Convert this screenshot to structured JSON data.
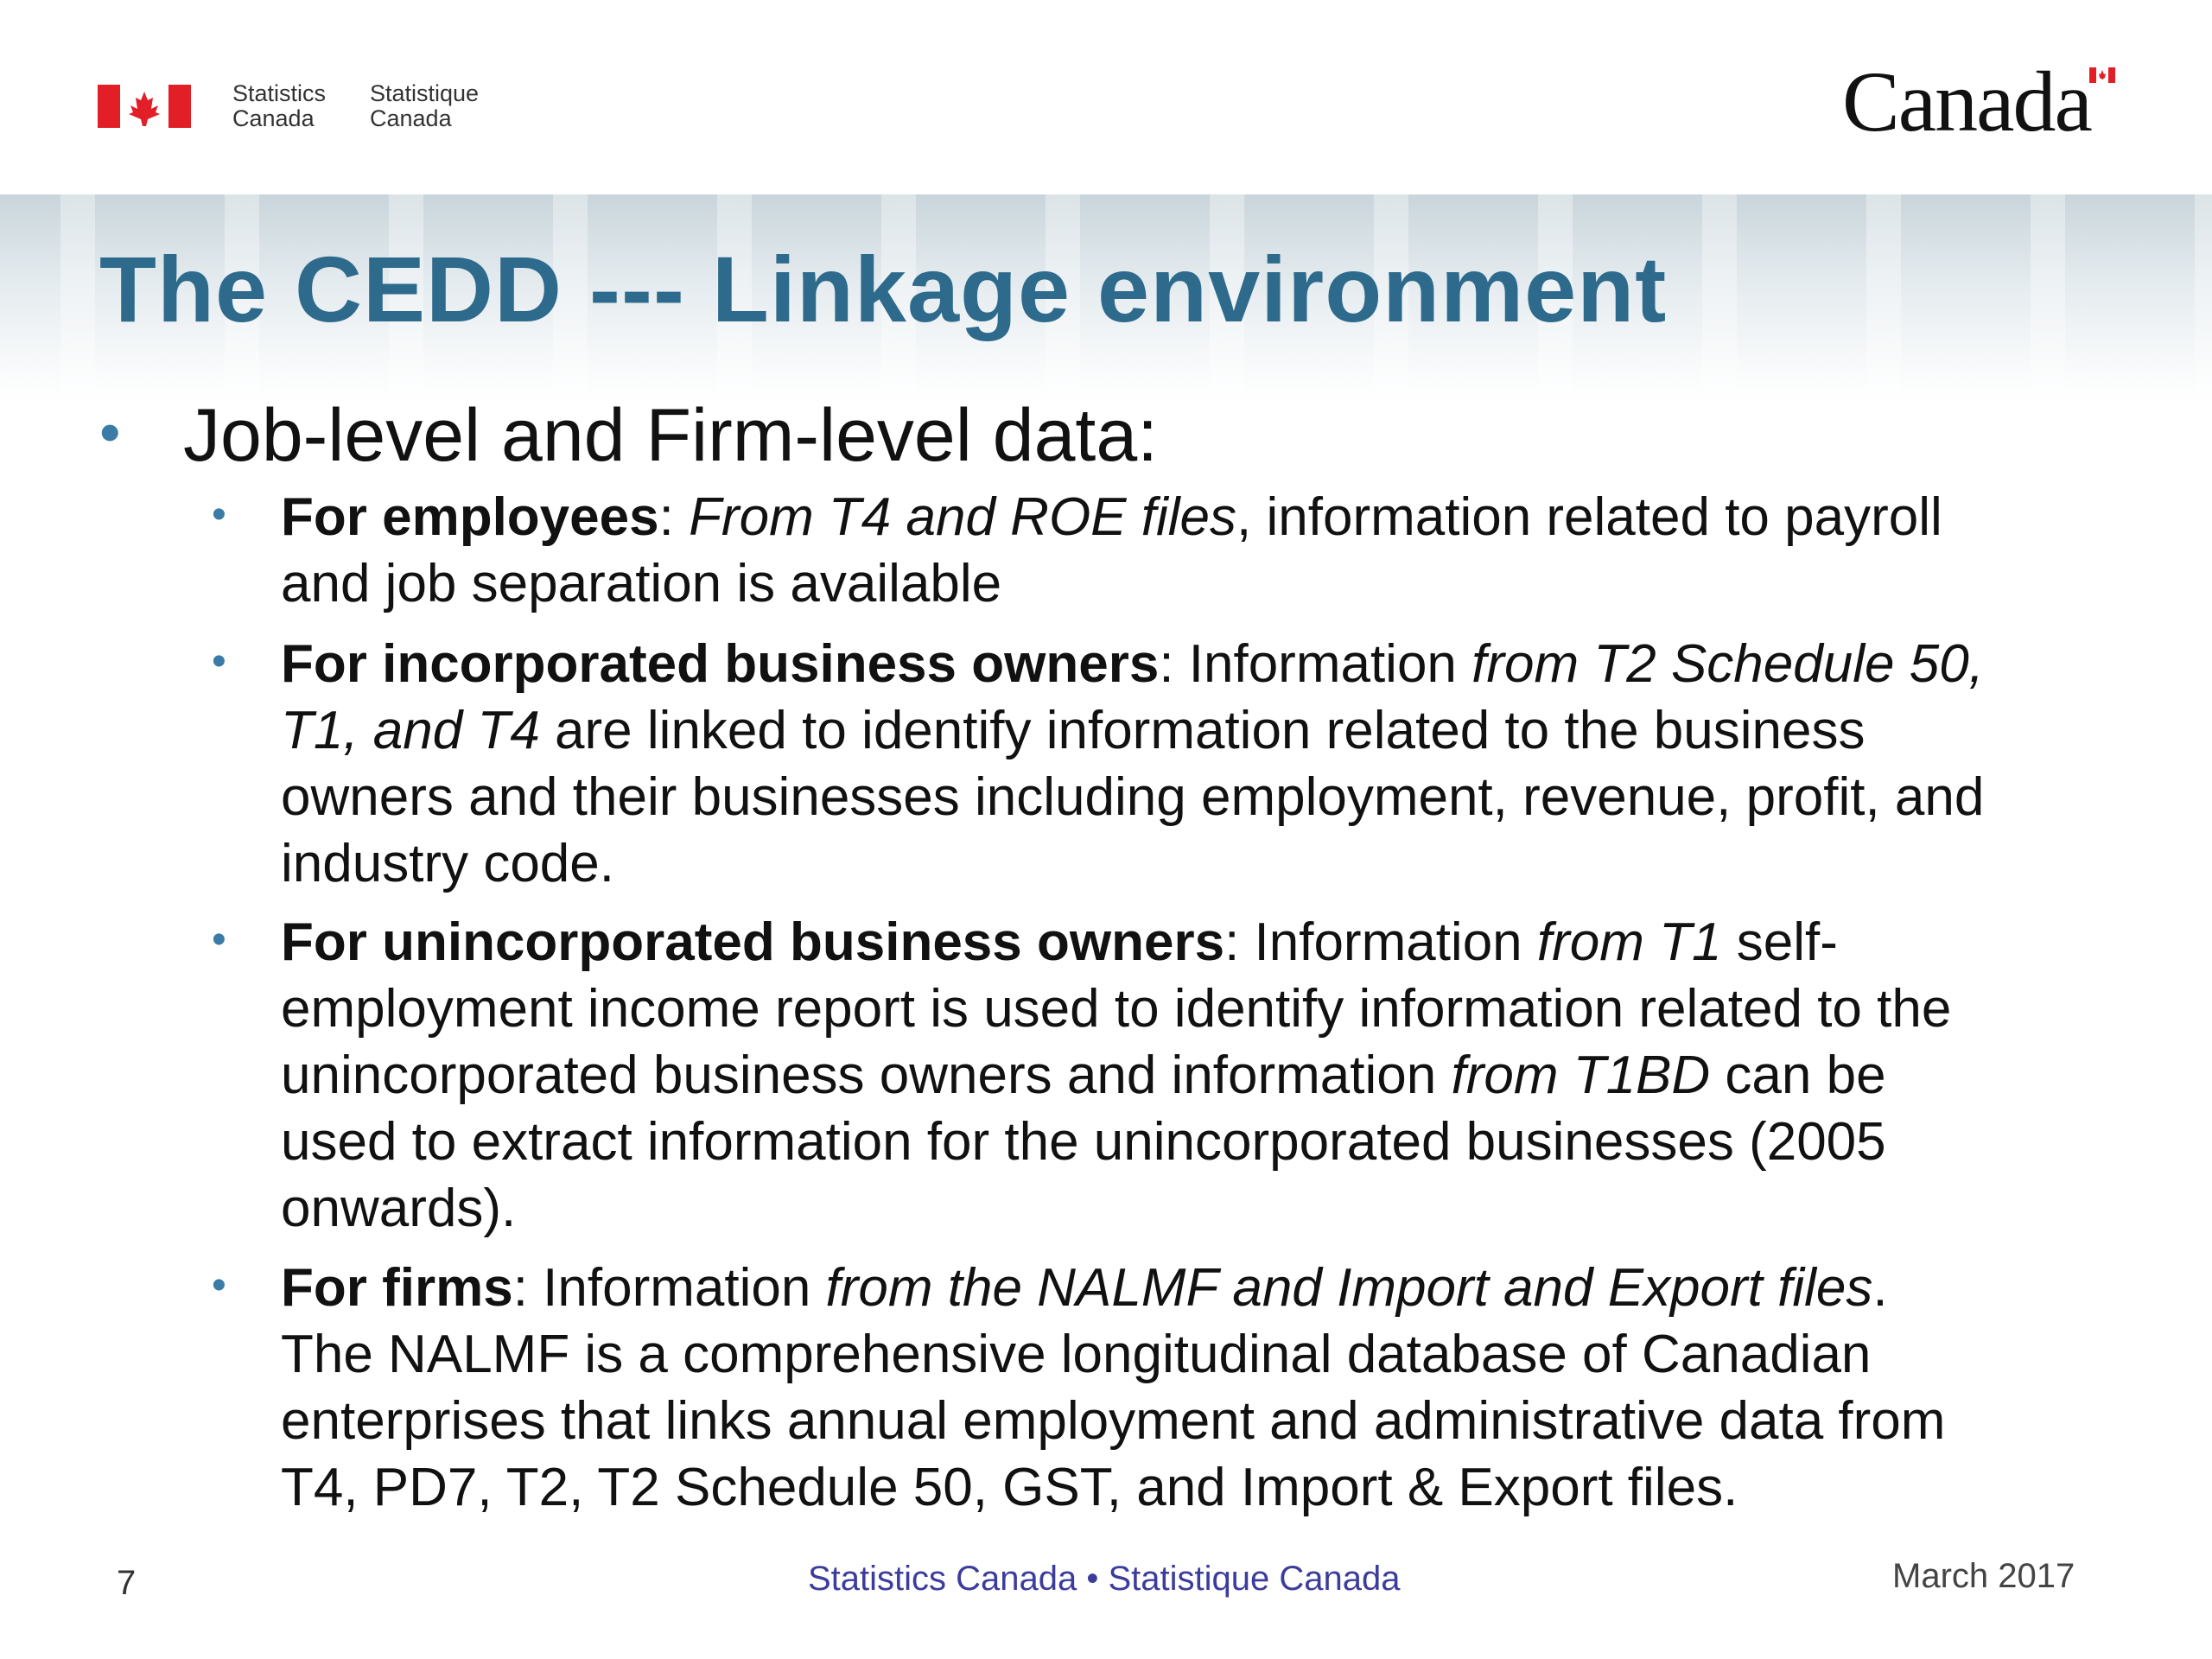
{
  "header": {
    "signature_en": [
      "Statistics",
      "Canada"
    ],
    "signature_fr": [
      "Statistique",
      "Canada"
    ],
    "wordmark": "Canada",
    "flag_color": "#e21f26"
  },
  "title": "The CEDD --- Linkage environment",
  "main_bullet": "Job-level  and Firm-level data:",
  "bullets": [
    {
      "lines": [
        [
          [
            "b",
            "For employees"
          ],
          [
            "n",
            ": "
          ],
          [
            "i",
            "From T4 and ROE files"
          ],
          [
            "n",
            ", information related to payroll"
          ]
        ],
        [
          [
            "n",
            "and job separation is available"
          ]
        ]
      ]
    },
    {
      "lines": [
        [
          [
            "b",
            "For incorporated business owners"
          ],
          [
            "n",
            ": Information "
          ],
          [
            "i",
            "from T2 Schedule 50,"
          ]
        ],
        [
          [
            "i",
            "T1, and T4"
          ],
          [
            "n",
            " are linked to identify information related to the business"
          ]
        ],
        [
          [
            "n",
            "owners and their businesses including employment, revenue, profit, and"
          ]
        ],
        [
          [
            "n",
            "industry code."
          ]
        ]
      ]
    },
    {
      "lines": [
        [
          [
            "b",
            "For unincorporated business owners"
          ],
          [
            "n",
            ": Information "
          ],
          [
            "i",
            "from T1"
          ],
          [
            "n",
            " self-"
          ]
        ],
        [
          [
            "n",
            "employment income report is used to identify information related to the"
          ]
        ],
        [
          [
            "n",
            "unincorporated business owners and information "
          ],
          [
            "i",
            "from T1BD"
          ],
          [
            "n",
            " can be"
          ]
        ],
        [
          [
            "n",
            "used to extract information for the unincorporated businesses (2005"
          ]
        ],
        [
          [
            "n",
            "onwards)."
          ]
        ]
      ]
    },
    {
      "lines": [
        [
          [
            "b",
            "For firms"
          ],
          [
            "n",
            ": Information "
          ],
          [
            "i",
            "from the NALMF and Import and Export files"
          ],
          [
            "n",
            "."
          ]
        ],
        [
          [
            "n",
            "The NALMF is a comprehensive longitudinal database of Canadian"
          ]
        ],
        [
          [
            "n",
            "enterprises that links annual employment and administrative data from"
          ]
        ],
        [
          [
            "n",
            "T4, PD7, T2, T2 Schedule 50, GST, and Import & Export files."
          ]
        ]
      ]
    }
  ],
  "footer": {
    "page_number": "7",
    "center": "Statistics Canada • Statistique Canada",
    "center_color": "#3c3c9c",
    "date": "March 2017"
  },
  "accent_color": "#2e6a8c"
}
